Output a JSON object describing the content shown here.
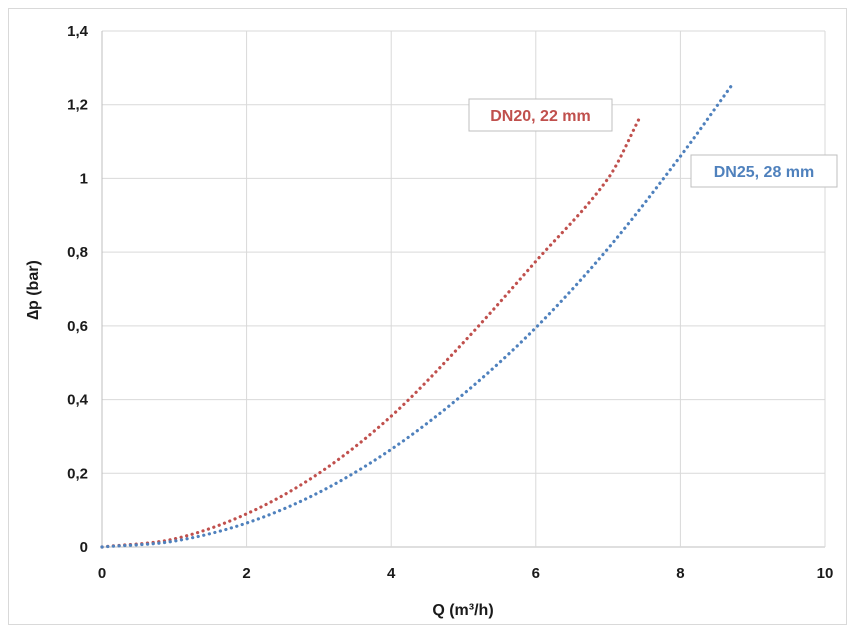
{
  "chart_data": {
    "type": "line",
    "title": "",
    "xlabel": "Q (m³/h)",
    "ylabel": "∆p (bar)",
    "xlim": [
      0,
      10
    ],
    "ylim": [
      0,
      1.4
    ],
    "x_ticks": [
      "0",
      "2",
      "4",
      "6",
      "8",
      "10"
    ],
    "y_ticks": [
      "0",
      "0,2",
      "0,4",
      "0,6",
      "0,8",
      "1",
      "1,2",
      "1,4"
    ],
    "grid": true,
    "series": [
      {
        "name": "DN20, 22 mm",
        "color": "#c0504d",
        "line_style": "dotted",
        "points": [
          [
            0,
            0
          ],
          [
            1,
            0.022
          ],
          [
            2,
            0.09
          ],
          [
            3,
            0.2
          ],
          [
            4,
            0.355
          ],
          [
            5,
            0.555
          ],
          [
            6,
            0.775
          ],
          [
            7,
            1.0
          ],
          [
            7.45,
            1.17
          ]
        ]
      },
      {
        "name": "DN25, 28 mm",
        "color": "#4f81bd",
        "line_style": "dotted",
        "points": [
          [
            0,
            0
          ],
          [
            1,
            0.016
          ],
          [
            2,
            0.065
          ],
          [
            3,
            0.148
          ],
          [
            4,
            0.265
          ],
          [
            5,
            0.415
          ],
          [
            6,
            0.595
          ],
          [
            7,
            0.81
          ],
          [
            8,
            1.06
          ],
          [
            8.7,
            1.25
          ]
        ]
      }
    ],
    "annotations": [
      {
        "series": 0,
        "text": "DN20, 22 mm"
      },
      {
        "series": 1,
        "text": "DN25, 28 mm"
      }
    ]
  }
}
